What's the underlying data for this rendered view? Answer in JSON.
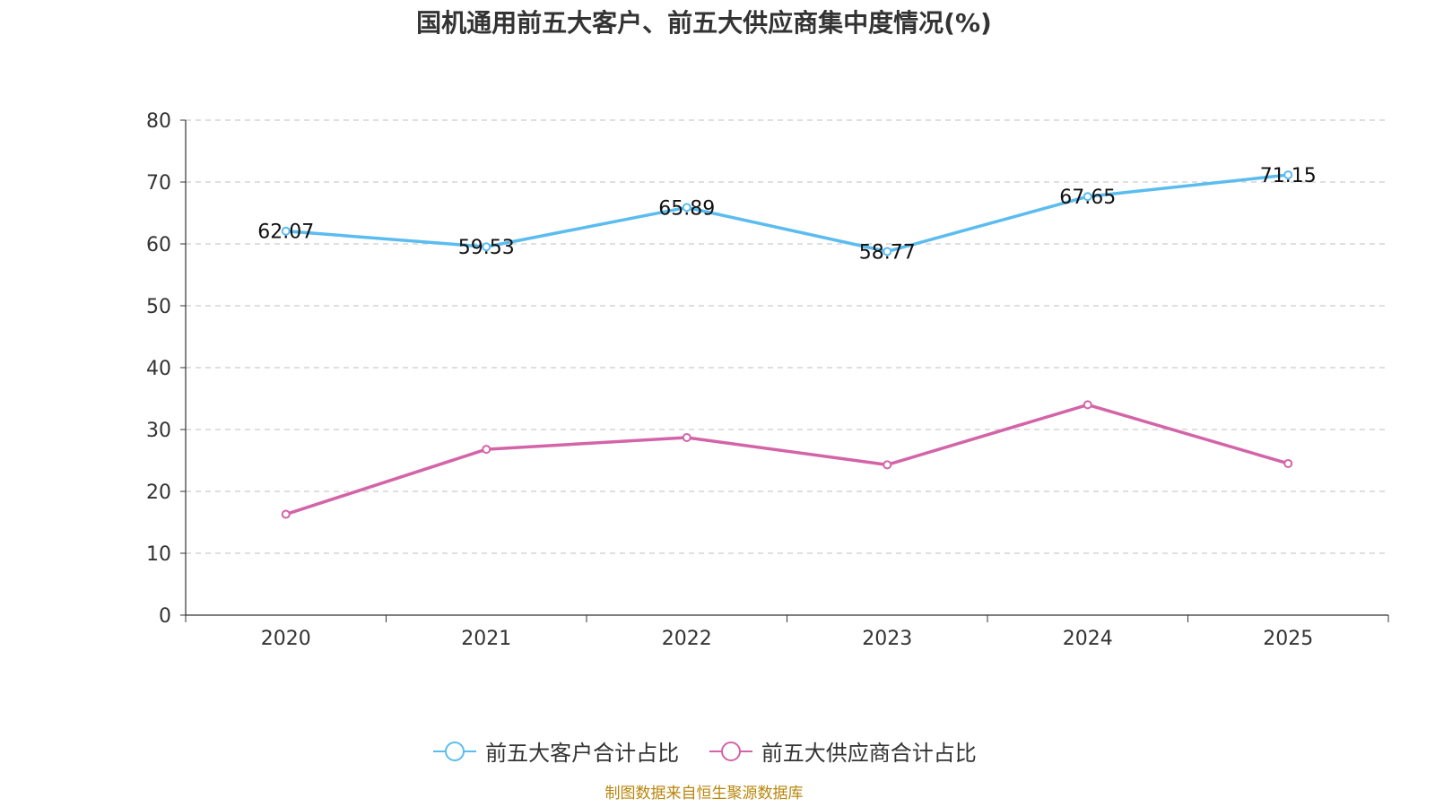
{
  "chart_data": {
    "type": "line",
    "title": "国机通用前五大客户、前五大供应商集中度情况(%)",
    "categories": [
      "2020",
      "2021",
      "2022",
      "2023",
      "2024",
      "2025"
    ],
    "yticks": [
      "0",
      "10",
      "20",
      "30",
      "40",
      "50",
      "60",
      "70",
      "80"
    ],
    "ylim": [
      0,
      80
    ],
    "grid": true,
    "legend_position": "bottom",
    "series": [
      {
        "name": "前五大客户合计占比",
        "color": "#5bbcef",
        "values": [
          62.07,
          59.53,
          65.89,
          58.77,
          67.65,
          71.15
        ],
        "labels": [
          "62.07",
          "59.53",
          "65.89",
          "58.77",
          "67.65",
          "71.15"
        ]
      },
      {
        "name": "前五大供应商合计占比",
        "color": "#d364a8",
        "values": [
          16.3,
          26.8,
          28.7,
          24.3,
          34.0,
          24.5
        ]
      }
    ]
  },
  "source_note": "制图数据来自恒生聚源数据库"
}
